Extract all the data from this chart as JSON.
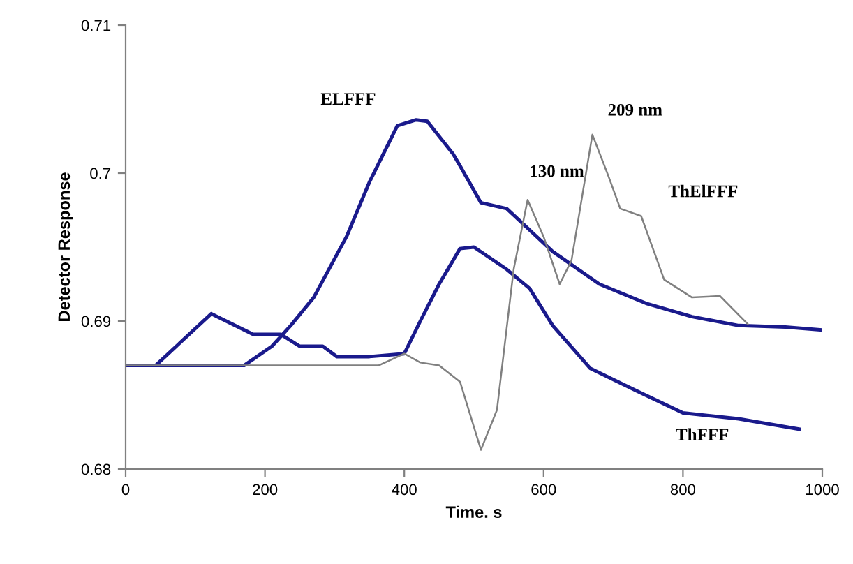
{
  "chart_data": {
    "type": "line",
    "xlabel": "Time. s",
    "ylabel": "Detector Response",
    "xlim": [
      0,
      1000
    ],
    "ylim": [
      0.68,
      0.71
    ],
    "xticks": [
      0,
      200,
      400,
      600,
      800,
      1000
    ],
    "yticks": [
      0.68,
      0.69,
      0.7,
      0.71
    ],
    "grid": false,
    "legend": false,
    "marker": "none",
    "line_style": "solid",
    "series": [
      {
        "color": "#1a1a8c",
        "x": [
          0,
          170,
          210,
          237,
          270,
          317,
          350,
          390,
          417,
          433,
          470,
          480,
          510,
          547,
          613,
          680,
          747,
          813,
          880,
          947,
          1000
        ],
        "values": [
          0.687,
          0.687,
          0.6883,
          0.6897,
          0.6916,
          0.6957,
          0.6994,
          0.7032,
          0.7036,
          0.7035,
          0.7013,
          0.7005,
          0.698,
          0.6976,
          0.6947,
          0.6925,
          0.6912,
          0.6903,
          0.6897,
          0.6896,
          0.6894
        ]
      },
      {
        "color": "#1a1a8c",
        "x": [
          0,
          43,
          123,
          183,
          223,
          250,
          283,
          303,
          350,
          400,
          423,
          450,
          480,
          500,
          547,
          580,
          613,
          667,
          733,
          800,
          880,
          967
        ],
        "values": [
          0.687,
          0.687,
          0.6905,
          0.6891,
          0.6891,
          0.6883,
          0.6883,
          0.6876,
          0.6876,
          0.6878,
          0.69,
          0.6925,
          0.6949,
          0.695,
          0.6935,
          0.6922,
          0.6897,
          0.6868,
          0.6853,
          0.6838,
          0.6834,
          0.6827
        ]
      },
      {
        "color": "#808080",
        "x": [
          0,
          363,
          400,
          423,
          450,
          480,
          510,
          533,
          557,
          577,
          600,
          623,
          640,
          670,
          693,
          710,
          740,
          773,
          813,
          853,
          893
        ],
        "values": [
          0.687,
          0.687,
          0.6878,
          0.6872,
          0.687,
          0.6859,
          0.6813,
          0.684,
          0.6935,
          0.6982,
          0.6957,
          0.6925,
          0.6941,
          0.7026,
          0.6998,
          0.6976,
          0.6971,
          0.6928,
          0.6916,
          0.6917,
          0.6898
        ]
      }
    ],
    "annotations": [
      {
        "text": "ELFFF",
        "x": 417,
        "y": 0.7036
      },
      {
        "text": "130 nm",
        "x": 577,
        "y": 0.6982
      },
      {
        "text": "209 nm",
        "x": 670,
        "y": 0.7026
      },
      {
        "text": "ThElFFF",
        "x": 740,
        "y": 0.6971
      },
      {
        "text": "ThFFF",
        "x": 800,
        "y": 0.6838
      }
    ]
  }
}
